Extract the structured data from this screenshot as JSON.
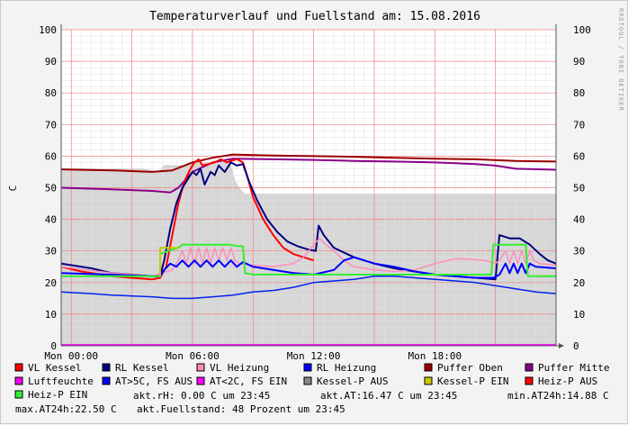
{
  "chart_data": {
    "type": "line",
    "title": "Temperaturverlauf und Fuellstand am: 15.08.2016",
    "watermark": "RRDTOOL / TOBI OETIKER",
    "ylabel": "C",
    "ylim": [
      0,
      100
    ],
    "yticks": [
      0,
      10,
      20,
      30,
      40,
      50,
      60,
      70,
      80,
      90,
      100
    ],
    "xlim": [
      -0.5,
      24
    ],
    "xticks": [
      {
        "hour": 0,
        "label": "Mon 00:00"
      },
      {
        "hour": 6,
        "label": "Mon 06:00"
      },
      {
        "hour": 12,
        "label": "Mon 12:00"
      },
      {
        "hour": 18,
        "label": "Mon 18:00"
      }
    ],
    "area": {
      "name": "Fuellstand",
      "color": "#d6d6d6",
      "edge": "#bcbcbc",
      "points": [
        [
          -0.5,
          56
        ],
        [
          3.5,
          56
        ],
        [
          4.3,
          55
        ],
        [
          4.5,
          56
        ],
        [
          4.6,
          57
        ],
        [
          5.0,
          57
        ],
        [
          5.5,
          57
        ],
        [
          6.0,
          58
        ],
        [
          6.5,
          58
        ],
        [
          7.0,
          58
        ],
        [
          7.8,
          59
        ],
        [
          8.1,
          52
        ],
        [
          8.4,
          49
        ],
        [
          8.6,
          48
        ],
        [
          9.5,
          48
        ],
        [
          12.0,
          48
        ],
        [
          14.0,
          48
        ],
        [
          16.0,
          48
        ],
        [
          18.0,
          48
        ],
        [
          20.0,
          48
        ],
        [
          22.0,
          48
        ],
        [
          24.0,
          48
        ]
      ]
    },
    "series": [
      {
        "name": "Puffer Oben",
        "color": "#990000",
        "width": 2,
        "points": [
          [
            -0.5,
            55.8
          ],
          [
            2,
            55.5
          ],
          [
            4,
            55
          ],
          [
            5,
            55.5
          ],
          [
            6,
            58
          ],
          [
            7,
            59.5
          ],
          [
            8,
            60.5
          ],
          [
            10,
            60.2
          ],
          [
            12,
            60
          ],
          [
            14,
            59.8
          ],
          [
            16,
            59.5
          ],
          [
            18,
            59.2
          ],
          [
            20,
            59
          ],
          [
            22,
            58.5
          ],
          [
            24,
            58.3
          ]
        ]
      },
      {
        "name": "Puffer Mitte",
        "color": "#880088",
        "width": 2,
        "points": [
          [
            -0.5,
            50
          ],
          [
            2,
            49.5
          ],
          [
            4,
            49
          ],
          [
            4.9,
            48.5
          ],
          [
            5.3,
            50
          ],
          [
            6,
            55
          ],
          [
            7,
            58
          ],
          [
            8,
            59.2
          ],
          [
            10,
            59
          ],
          [
            12,
            58.8
          ],
          [
            14,
            58.5
          ],
          [
            16,
            58.3
          ],
          [
            18,
            58
          ],
          [
            20,
            57.5
          ],
          [
            21,
            57
          ],
          [
            22,
            56
          ],
          [
            24,
            55.7
          ]
        ]
      },
      {
        "name": "VL Kessel",
        "color": "#ff0000",
        "width": 2,
        "points": [
          [
            -0.5,
            25
          ],
          [
            0.5,
            23.5
          ],
          [
            2,
            22
          ],
          [
            4,
            21
          ],
          [
            4.4,
            21.5
          ],
          [
            4.7,
            25
          ],
          [
            5.0,
            35
          ],
          [
            5.3,
            45
          ],
          [
            5.6,
            52
          ],
          [
            5.9,
            56
          ],
          [
            6.1,
            58
          ],
          [
            6.3,
            59
          ],
          [
            6.5,
            57
          ],
          [
            6.8,
            57.5
          ],
          [
            7.1,
            58
          ],
          [
            7.4,
            59
          ],
          [
            7.7,
            58
          ],
          [
            7.9,
            58.5
          ],
          [
            8.2,
            59
          ],
          [
            8.5,
            58
          ],
          [
            8.7,
            54
          ],
          [
            9.0,
            47
          ],
          [
            9.5,
            40
          ],
          [
            10.0,
            35
          ],
          [
            10.5,
            31
          ],
          [
            11.0,
            29
          ],
          [
            11.5,
            28
          ],
          [
            12.0,
            27
          ]
        ]
      },
      {
        "name": "RL Kessel",
        "color": "#000080",
        "width": 2,
        "points": [
          [
            -0.5,
            26
          ],
          [
            1,
            24.5
          ],
          [
            2,
            23
          ],
          [
            4,
            22
          ],
          [
            4.4,
            22
          ],
          [
            4.6,
            27
          ],
          [
            4.9,
            37
          ],
          [
            5.2,
            45
          ],
          [
            5.5,
            50
          ],
          [
            5.8,
            53
          ],
          [
            6.0,
            55
          ],
          [
            6.2,
            54
          ],
          [
            6.4,
            56
          ],
          [
            6.6,
            51
          ],
          [
            6.9,
            55
          ],
          [
            7.1,
            54
          ],
          [
            7.3,
            57
          ],
          [
            7.6,
            55
          ],
          [
            7.9,
            58
          ],
          [
            8.2,
            57
          ],
          [
            8.5,
            57.5
          ],
          [
            8.8,
            52
          ],
          [
            9.2,
            46
          ],
          [
            9.7,
            40
          ],
          [
            10.2,
            36
          ],
          [
            10.7,
            33
          ],
          [
            11.2,
            31.5
          ],
          [
            11.7,
            30.5
          ],
          [
            12.1,
            30
          ],
          [
            12.25,
            38
          ],
          [
            12.5,
            35
          ],
          [
            13,
            31
          ],
          [
            14,
            28
          ],
          [
            15,
            26
          ],
          [
            16,
            24.5
          ],
          [
            17,
            23.5
          ],
          [
            18,
            22.5
          ],
          [
            19,
            22
          ],
          [
            20,
            21.5
          ],
          [
            21,
            21
          ],
          [
            21.2,
            35
          ],
          [
            21.7,
            34
          ],
          [
            22.2,
            34
          ],
          [
            22.7,
            32
          ],
          [
            23.2,
            29
          ],
          [
            23.6,
            27
          ],
          [
            24,
            26
          ]
        ]
      },
      {
        "name": "VL Heizung",
        "color": "#ff8cbd",
        "width": 1.5,
        "points": [
          [
            -0.5,
            25
          ],
          [
            2,
            23
          ],
          [
            4,
            22
          ],
          [
            4.5,
            23
          ],
          [
            5.0,
            24
          ],
          [
            5.3,
            27
          ],
          [
            5.5,
            30
          ],
          [
            5.7,
            26
          ],
          [
            5.9,
            31
          ],
          [
            6.1,
            26
          ],
          [
            6.3,
            31
          ],
          [
            6.5,
            26
          ],
          [
            6.7,
            31
          ],
          [
            6.9,
            26
          ],
          [
            7.1,
            31
          ],
          [
            7.3,
            27
          ],
          [
            7.5,
            31
          ],
          [
            7.7,
            27
          ],
          [
            7.9,
            31
          ],
          [
            8.1,
            27
          ],
          [
            8.3,
            26
          ],
          [
            9,
            25.5
          ],
          [
            10,
            25
          ],
          [
            11,
            26
          ],
          [
            11.5,
            28
          ],
          [
            12,
            32
          ],
          [
            12.3,
            34
          ],
          [
            12.6,
            32
          ],
          [
            13,
            30
          ],
          [
            13.5,
            27
          ],
          [
            14,
            25
          ],
          [
            15,
            24
          ],
          [
            16,
            23.5
          ],
          [
            17,
            24
          ],
          [
            18,
            26
          ],
          [
            19,
            27.5
          ],
          [
            19.5,
            27.5
          ],
          [
            20.5,
            27
          ],
          [
            21,
            26
          ],
          [
            21.2,
            27
          ],
          [
            21.5,
            30
          ],
          [
            21.7,
            26
          ],
          [
            21.9,
            30
          ],
          [
            22.1,
            26
          ],
          [
            22.3,
            30
          ],
          [
            22.5,
            26
          ],
          [
            22.7,
            30
          ],
          [
            22.9,
            27
          ],
          [
            23.2,
            26
          ],
          [
            24,
            25.5
          ]
        ]
      },
      {
        "name": "RL Heizung",
        "color": "#0000ff",
        "width": 2,
        "points": [
          [
            -0.5,
            23
          ],
          [
            2,
            22.5
          ],
          [
            4,
            22
          ],
          [
            4.4,
            22
          ],
          [
            4.6,
            24
          ],
          [
            4.9,
            26
          ],
          [
            5.2,
            25
          ],
          [
            5.5,
            27
          ],
          [
            5.8,
            25
          ],
          [
            6.1,
            27
          ],
          [
            6.4,
            25
          ],
          [
            6.7,
            27
          ],
          [
            7.0,
            25
          ],
          [
            7.3,
            27
          ],
          [
            7.6,
            25
          ],
          [
            7.9,
            27
          ],
          [
            8.2,
            25
          ],
          [
            8.5,
            26.5
          ],
          [
            9,
            25
          ],
          [
            10,
            24
          ],
          [
            11,
            23
          ],
          [
            12,
            22.5
          ],
          [
            13,
            24
          ],
          [
            13.5,
            27
          ],
          [
            14,
            28
          ],
          [
            15,
            26
          ],
          [
            16,
            25
          ],
          [
            17,
            23.5
          ],
          [
            18,
            22.5
          ],
          [
            19,
            22
          ],
          [
            20,
            21.5
          ],
          [
            20.9,
            21.5
          ],
          [
            21.2,
            22.5
          ],
          [
            21.5,
            26
          ],
          [
            21.7,
            23
          ],
          [
            21.9,
            26
          ],
          [
            22.1,
            23
          ],
          [
            22.3,
            26
          ],
          [
            22.5,
            23
          ],
          [
            22.7,
            26
          ],
          [
            23,
            25
          ],
          [
            24,
            24.5
          ]
        ]
      },
      {
        "name": "Heiz-P EIN",
        "color": "#33ee33",
        "width": 2,
        "points": [
          [
            -0.5,
            22
          ],
          [
            4.4,
            22
          ],
          [
            4.4,
            29
          ],
          [
            4.8,
            30
          ],
          [
            5.3,
            31
          ],
          [
            5.5,
            32
          ],
          [
            7.5,
            32
          ],
          [
            7.8,
            32
          ],
          [
            8.3,
            31.5
          ],
          [
            8.5,
            31.5
          ],
          [
            8.6,
            23
          ],
          [
            9,
            22.5
          ],
          [
            20.8,
            22.5
          ],
          [
            20.9,
            32
          ],
          [
            22.5,
            32
          ],
          [
            22.6,
            22
          ],
          [
            24,
            22
          ]
        ]
      },
      {
        "name": "Kessel-P EIN",
        "color": "#c8c800",
        "width": 2,
        "points": [
          [
            4.4,
            22
          ],
          [
            4.4,
            31
          ],
          [
            5.3,
            31
          ]
        ]
      },
      {
        "name": "AT>5C, FS AUS",
        "color": "#0022ee",
        "width": 1.5,
        "points": [
          [
            -0.5,
            17
          ],
          [
            1,
            16.5
          ],
          [
            2,
            16
          ],
          [
            4,
            15.5
          ],
          [
            5,
            15
          ],
          [
            6,
            15
          ],
          [
            7,
            15.5
          ],
          [
            8,
            16
          ],
          [
            9,
            17
          ],
          [
            10,
            17.5
          ],
          [
            11,
            18.5
          ],
          [
            12,
            20
          ],
          [
            13,
            20.5
          ],
          [
            14,
            21
          ],
          [
            15,
            22
          ],
          [
            16,
            22
          ],
          [
            17,
            21.5
          ],
          [
            18,
            21
          ],
          [
            19,
            20.5
          ],
          [
            20,
            20
          ],
          [
            21,
            19
          ],
          [
            22,
            18
          ],
          [
            23,
            17
          ],
          [
            24,
            16.5
          ]
        ]
      },
      {
        "name": "AT<2C, FS EIN",
        "color": "#ff00ff",
        "width": 1.5,
        "points": [
          [
            -0.5,
            0.3
          ],
          [
            24,
            0.3
          ]
        ]
      }
    ],
    "legend": {
      "placement": "bottom",
      "items": [
        {
          "name": "VL Kessel",
          "color": "#ff0000"
        },
        {
          "name": "RL Kessel",
          "color": "#000080"
        },
        {
          "name": "VL Heizung",
          "color": "#ff8cbd"
        },
        {
          "name": "RL Heizung",
          "color": "#0000ff"
        },
        {
          "name": "Puffer Oben",
          "color": "#990000"
        },
        {
          "name": "Puffer Mitte",
          "color": "#880088"
        },
        {
          "name": "Luftfeuchte",
          "color": "#ee00ee"
        },
        {
          "name": "AT>5C, FS AUS",
          "color": "#0000ff"
        },
        {
          "name": "AT<2C, FS EIN",
          "color": "#ff00ff"
        },
        {
          "name": "Kessel-P AUS",
          "color": "#888888"
        },
        {
          "name": "Kessel-P EIN",
          "color": "#c8c800"
        },
        {
          "name": "Heiz-P AUS",
          "color": "#ff0000"
        },
        {
          "name": "Heiz-P EIN",
          "color": "#33ee33"
        }
      ]
    },
    "info": {
      "akt_rh": "akt.rH: 0.00 C um 23:45",
      "akt_at": "akt.AT:16.47 C um 23:45",
      "min_at": "min.AT24h:14.88 C",
      "max_at": "max.AT24h:22.50 C",
      "fuellstand": "akt.Fuellstand:   48 Prozent um 23:45"
    }
  }
}
